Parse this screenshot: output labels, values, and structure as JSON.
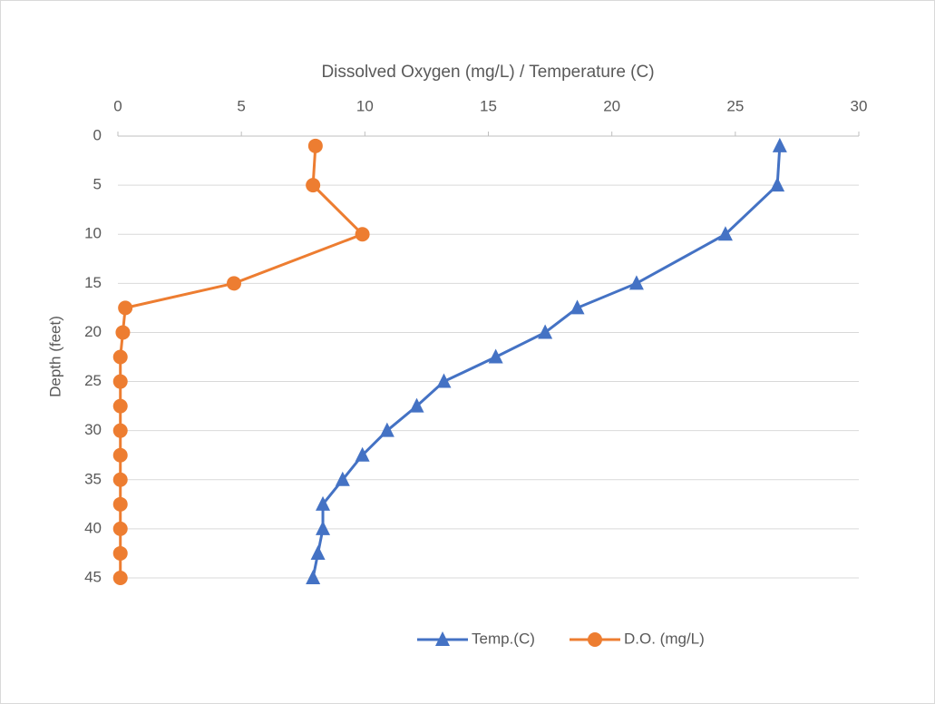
{
  "chart_data": {
    "type": "line",
    "title": "Dissolved Oxygen (mg/L) / Temperature (C)",
    "y_label": "Depth (feet)",
    "depth": [
      1,
      5,
      10,
      15,
      17.5,
      20,
      22.5,
      25,
      27.5,
      30,
      32.5,
      35,
      37.5,
      40,
      42.5,
      45
    ],
    "series": [
      {
        "name": "Temp.(C)",
        "color": "#4472c4",
        "marker": "triangle",
        "values": [
          26.8,
          26.7,
          24.6,
          21.0,
          18.6,
          17.3,
          15.3,
          13.2,
          12.1,
          10.9,
          9.9,
          9.1,
          8.3,
          8.3,
          8.1,
          7.9
        ]
      },
      {
        "name": "D.O. (mg/L)",
        "color": "#ed7d31",
        "marker": "circle",
        "values": [
          8.0,
          7.9,
          9.9,
          4.7,
          0.3,
          0.2,
          0.1,
          0.1,
          0.1,
          0.1,
          0.1,
          0.1,
          0.1,
          0.1,
          0.1,
          0.1
        ]
      }
    ],
    "xlim": [
      0,
      30
    ],
    "xticks": [
      0,
      5,
      10,
      15,
      20,
      25,
      30
    ],
    "ylim": [
      0,
      45
    ],
    "yticks": [
      0,
      5,
      10,
      15,
      20,
      25,
      30,
      35,
      40,
      45
    ],
    "y_inverted": true,
    "grid": true,
    "legend": "bottom"
  }
}
